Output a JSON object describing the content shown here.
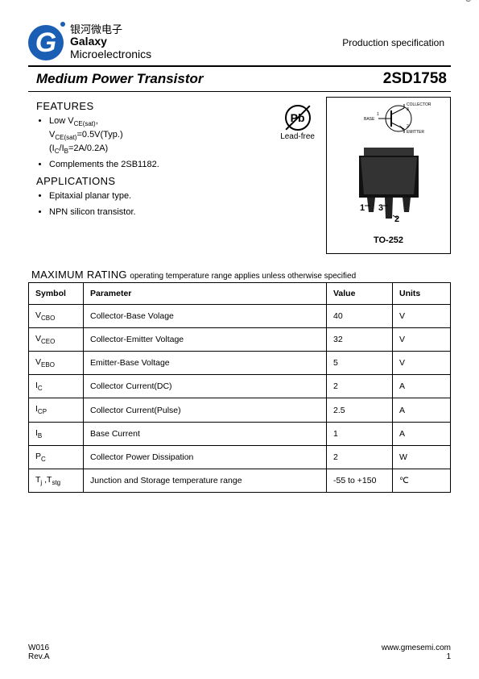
{
  "header": {
    "company_cn": "银河微电子",
    "company_en": "Galaxy",
    "company_sub": "Microelectronics",
    "prod_spec": "Production specification"
  },
  "title": {
    "left": "Medium Power Transistor",
    "right": "2SD1758"
  },
  "features": {
    "heading": "FEATURES",
    "items": [
      {
        "text": "Low V",
        "sub": "CE(sat)",
        "tail": ","
      },
      {
        "indent": "V",
        "sub": "CE(sat)",
        "tail": "=0.5V(Typ.)"
      },
      {
        "indent": "(I",
        "sub": "C",
        "mid": "/I",
        "sub2": "B",
        "tail": "=2A/0.2A)"
      },
      {
        "text": "Complements the 2SB1182."
      }
    ]
  },
  "applications": {
    "heading": "APPLICATIONS",
    "items": [
      "Epitaxial planar type.",
      "NPN silicon transistor."
    ]
  },
  "lead_free_label": "Lead-free",
  "pb_text": "Pb",
  "package": {
    "label": "TO-252",
    "pins": {
      "p1": "1",
      "p2": "2",
      "p3": "3"
    },
    "schematic": {
      "collector": "COLLECTOR",
      "base": "BASE",
      "emitter": "EMITTER"
    }
  },
  "max_rating": {
    "heading_big": "MAXIMUM RATING",
    "heading_small": "operating temperature range applies unless otherwise specified",
    "columns": [
      "Symbol",
      "Parameter",
      "Value",
      "Units"
    ],
    "rows": [
      {
        "sym": "V",
        "symsub": "CBO",
        "param": "Collector-Base Volage",
        "value": "40",
        "unit": "V"
      },
      {
        "sym": "V",
        "symsub": "CEO",
        "param": "Collector-Emitter Voltage",
        "value": "32",
        "unit": "V"
      },
      {
        "sym": "V",
        "symsub": "EBO",
        "param": "Emitter-Base Voltage",
        "value": "5",
        "unit": "V"
      },
      {
        "sym": "I",
        "symsub": "C",
        "param": "Collector Current(DC)",
        "value": "2",
        "unit": "A"
      },
      {
        "sym": "I",
        "symsub": "CP",
        "param": "Collector Current(Pulse)",
        "value": "2.5",
        "unit": "A"
      },
      {
        "sym": "I",
        "symsub": "B",
        "param": "Base Current",
        "value": "1",
        "unit": "A"
      },
      {
        "sym": "P",
        "symsub": "C",
        "param": "Collector Power Dissipation",
        "value": "2",
        "unit": "W"
      },
      {
        "sym": "T",
        "symsub": "j",
        "sym2": " ,T",
        "symsub2": "stg",
        "param": "Junction and Storage temperature range",
        "value": "-55 to +150",
        "unit": "℃"
      }
    ]
  },
  "footer": {
    "left1": "W016",
    "left2": "Rev.A",
    "right1": "www.gmesemi.com",
    "right2": "1"
  },
  "colors": {
    "brand_blue": "#1a5fb4",
    "text": "#000000",
    "bg": "#ffffff"
  }
}
